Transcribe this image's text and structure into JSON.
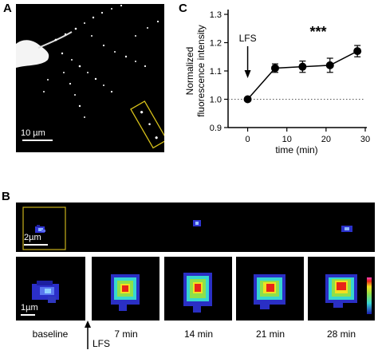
{
  "panel_a": {
    "letter": "A",
    "scale_label": "10 µm"
  },
  "panel_b": {
    "letter": "B",
    "scale_top_label": "2µm",
    "scale_bottom_label": "1µm",
    "stimulus_label": "LFS",
    "time_labels": [
      "baseline",
      "7 min",
      "14 min",
      "21 min",
      "28 min"
    ]
  },
  "panel_c": {
    "letter": "C",
    "stimulus_label": "LFS",
    "significance": "***"
  },
  "chart_data": {
    "type": "line",
    "x": [
      0,
      7,
      14,
      21,
      28
    ],
    "series": [
      {
        "values": [
          1.0,
          1.11,
          1.115,
          1.12,
          1.17
        ],
        "errors": [
          0.0,
          0.015,
          0.02,
          0.025,
          0.02
        ]
      }
    ],
    "xlabel": "time (min)",
    "ylabel": "Normalized fluorescence intensity",
    "xlim": [
      -5,
      30
    ],
    "ylim": [
      0.9,
      1.3
    ],
    "xticks": [
      0,
      10,
      20,
      30
    ],
    "yticks": [
      0.9,
      1.0,
      1.1,
      1.2,
      1.3
    ],
    "baseline_y": 1.0,
    "baseline_style": "dotted",
    "annotation": "LFS at 0 min",
    "color": "#000000"
  }
}
